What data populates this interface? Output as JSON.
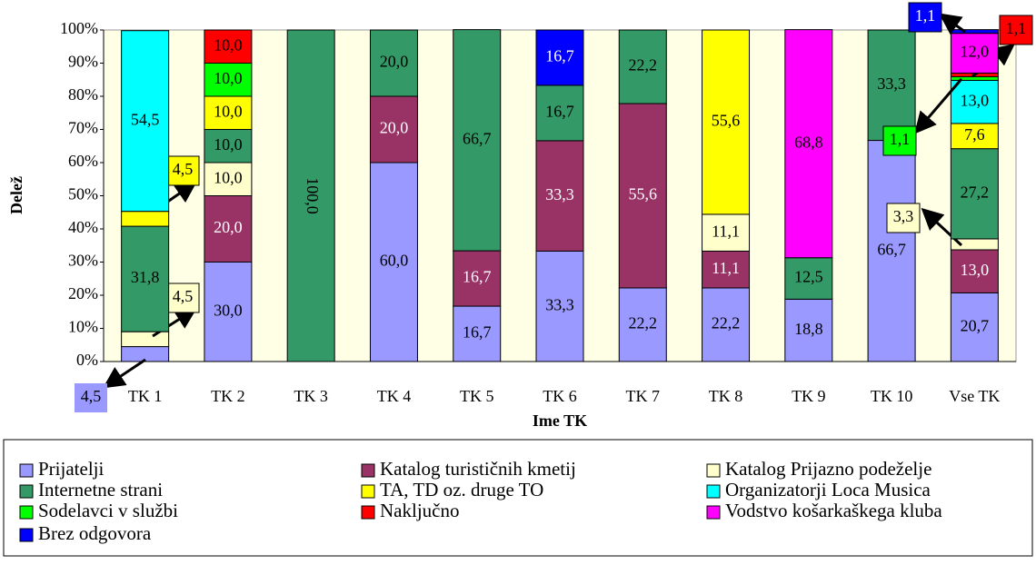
{
  "chart_data": {
    "type": "stacked_bar_100",
    "xlabel": "Ime TK",
    "ylabel": "Delež",
    "categories": [
      "TK 1",
      "TK 2",
      "TK 3",
      "TK 4",
      "TK 5",
      "TK 6",
      "TK 7",
      "TK 8",
      "TK 9",
      "TK 10",
      "Vse TK"
    ],
    "ylim": [
      0,
      100
    ],
    "yticks": [
      {
        "value": 0,
        "label": "0%"
      },
      {
        "value": 10,
        "label": "10%"
      },
      {
        "value": 20,
        "label": "20%"
      },
      {
        "value": 30,
        "label": "30%"
      },
      {
        "value": 40,
        "label": "40%"
      },
      {
        "value": 50,
        "label": "50%"
      },
      {
        "value": 60,
        "label": "60%"
      },
      {
        "value": 70,
        "label": "70%"
      },
      {
        "value": 80,
        "label": "80%"
      },
      {
        "value": 90,
        "label": "90%"
      },
      {
        "value": 100,
        "label": "100%"
      }
    ],
    "legend": "bottom",
    "series": [
      {
        "name": "Prijatelji",
        "color": "#9999ff",
        "values": [
          4.5,
          30.0,
          null,
          60.0,
          16.7,
          33.3,
          22.2,
          22.2,
          18.8,
          66.7,
          20.7
        ],
        "value_labels": [
          "4,5",
          "30,0",
          null,
          "60,0",
          "16,7",
          "33,3",
          "22,2",
          "22,2",
          "18,8",
          "66,7",
          "20,7"
        ]
      },
      {
        "name": "Katalog turističnih kmetij",
        "color": "#993366",
        "values": [
          null,
          20.0,
          null,
          20.0,
          16.7,
          33.3,
          55.6,
          11.1,
          null,
          null,
          13.0
        ],
        "value_labels": [
          null,
          "20,0",
          null,
          "20,0",
          "16,7",
          "33,3",
          "55,6",
          "11,1",
          null,
          null,
          "13,0"
        ]
      },
      {
        "name": "Katalog Prijazno podeželje",
        "color": "#ffffcc",
        "values": [
          4.5,
          10.0,
          null,
          null,
          null,
          null,
          null,
          11.1,
          null,
          null,
          3.3
        ],
        "value_labels": [
          "4,5",
          "10,0",
          null,
          null,
          null,
          null,
          null,
          "11,1",
          null,
          null,
          "3,3"
        ]
      },
      {
        "name": "Internetne strani",
        "color": "#339966",
        "values": [
          31.8,
          10.0,
          100.0,
          20.0,
          66.7,
          16.7,
          22.2,
          null,
          12.5,
          33.3,
          27.2
        ],
        "value_labels": [
          "31,8",
          "10,0",
          "100,0",
          "20,0",
          "66,7",
          "16,7",
          "22,2",
          null,
          "12,5",
          "33,3",
          "27,2"
        ]
      },
      {
        "name": "TA, TD oz. druge TO",
        "color": "#ffff00",
        "values": [
          4.5,
          10.0,
          null,
          null,
          null,
          null,
          null,
          55.6,
          null,
          null,
          7.6
        ],
        "value_labels": [
          "4,5",
          "10,0",
          null,
          null,
          null,
          null,
          null,
          "55,6",
          null,
          null,
          "7,6"
        ]
      },
      {
        "name": "Organizatorji Loca Musica",
        "color": "#00ffff",
        "values": [
          54.5,
          null,
          null,
          null,
          null,
          null,
          null,
          null,
          null,
          null,
          13.0
        ],
        "value_labels": [
          "54,5",
          null,
          null,
          null,
          null,
          null,
          null,
          null,
          null,
          null,
          "13,0"
        ]
      },
      {
        "name": "Sodelavci v službi",
        "color": "#00ff00",
        "values": [
          null,
          10.0,
          null,
          null,
          null,
          null,
          null,
          null,
          null,
          null,
          1.1
        ],
        "value_labels": [
          null,
          "10,0",
          null,
          null,
          null,
          null,
          null,
          null,
          null,
          null,
          "1,1"
        ]
      },
      {
        "name": "Naključno",
        "color": "#ff0000",
        "values": [
          null,
          10.0,
          null,
          null,
          null,
          null,
          null,
          null,
          null,
          null,
          1.1
        ],
        "value_labels": [
          null,
          "10,0",
          null,
          null,
          null,
          null,
          null,
          null,
          null,
          null,
          "1,1"
        ]
      },
      {
        "name": "Vodstvo košarkaškega kluba",
        "color": "#ff00ff",
        "values": [
          null,
          null,
          null,
          null,
          null,
          null,
          null,
          null,
          68.8,
          null,
          12.0
        ],
        "value_labels": [
          null,
          null,
          null,
          null,
          null,
          null,
          null,
          null,
          "68,8",
          null,
          "12,0"
        ]
      },
      {
        "name": "Brez odgovora",
        "color": "#0000ff",
        "values": [
          null,
          null,
          null,
          null,
          null,
          16.7,
          null,
          null,
          null,
          null,
          1.1
        ],
        "value_labels": [
          null,
          null,
          null,
          null,
          null,
          "16,7",
          null,
          null,
          null,
          null,
          "1,1"
        ]
      }
    ]
  }
}
